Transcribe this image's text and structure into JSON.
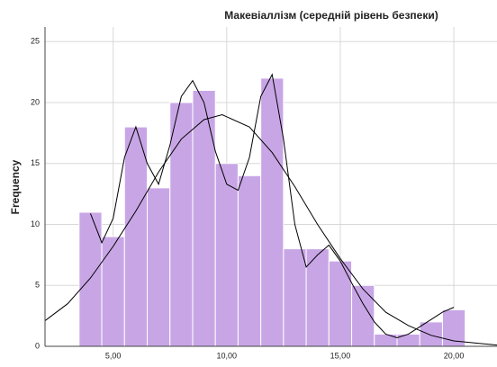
{
  "chart_data": {
    "type": "histogram",
    "title": "Макевіаллізм (середній рівень безпеки)",
    "y_label": "Frequency",
    "bins": [
      3.5,
      4.5,
      5.5,
      6.5,
      7.5,
      8.5,
      9.5,
      10.5,
      11.5,
      12.5,
      13.5,
      14.5,
      15.5,
      16.5,
      17.5,
      18.5,
      19.5,
      20.5
    ],
    "values": [
      11,
      9,
      18,
      13,
      20,
      21,
      15,
      14,
      22,
      8,
      8,
      7,
      5,
      1,
      1,
      2,
      3
    ],
    "color": "#c8a6e6",
    "xlim": [
      2,
      21.9
    ],
    "ylim": [
      0,
      26.2
    ],
    "xticks": [
      {
        "value": 5,
        "label": "5,00"
      },
      {
        "value": 10,
        "label": "10,00"
      },
      {
        "value": 15,
        "label": "15,00"
      },
      {
        "value": 20,
        "label": "20,00"
      }
    ],
    "yticks": [
      0,
      5,
      10,
      15,
      20,
      25
    ],
    "grid": true,
    "curves": [
      {
        "color": "#000000",
        "x": [
          4.0,
          4.5,
          5.0,
          5.5,
          6.0,
          6.5,
          7.0,
          7.5,
          8.0,
          8.5,
          9.0,
          9.5,
          10.0,
          10.5,
          11.0,
          11.5,
          12.0,
          12.5,
          13.0,
          13.5,
          14.0,
          14.5,
          15.0,
          15.5,
          16.0,
          16.5,
          17.0,
          17.5,
          18.0,
          18.5,
          19.0,
          19.5,
          20.0
        ],
        "values": [
          10.9,
          8.5,
          10.5,
          15.5,
          18.0,
          15.0,
          13.3,
          16.5,
          20.5,
          21.8,
          20.0,
          16.0,
          13.3,
          12.8,
          15.5,
          20.5,
          22.3,
          17.0,
          10.0,
          6.5,
          7.5,
          8.3,
          7.0,
          5.2,
          3.5,
          2.0,
          1.0,
          0.7,
          1.0,
          1.6,
          2.2,
          2.8,
          3.2
        ]
      },
      {
        "color": "#000000",
        "x": [
          2,
          3,
          4,
          5,
          6,
          7,
          8,
          9,
          9.8,
          11,
          12,
          13,
          14,
          15,
          16,
          17,
          18,
          19,
          20,
          21.9
        ],
        "values": [
          2.1,
          3.5,
          5.6,
          8.2,
          11.1,
          14.3,
          17.0,
          18.6,
          19.0,
          18.0,
          15.9,
          13.1,
          10.0,
          7.2,
          4.7,
          2.8,
          1.7,
          0.9,
          0.44,
          0.1
        ]
      }
    ]
  }
}
